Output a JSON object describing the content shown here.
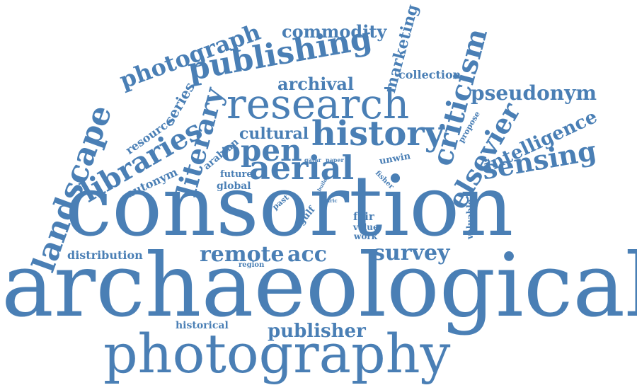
{
  "colors": {
    "word": "#4a7fb5",
    "background": "#ffffff"
  },
  "words": {
    "archaeological": "archaeological",
    "consortion": "consortion",
    "photography": "photography",
    "aerial": "aerial",
    "research": "research",
    "history": "history",
    "publishing": "publishing",
    "photograph": "photograph",
    "landscape": "landscape",
    "libraries": "libraries",
    "literary": "literary",
    "open": "open",
    "commodity": "commodity",
    "marketing": "marketing",
    "criticism": "criticism",
    "elsevier": "elsevier",
    "pseudonym": "pseudonym",
    "intelligence": "intelligence",
    "sensing": "sensing",
    "remote": "remote",
    "acc": "acc",
    "survey": "survey",
    "publisher": "publisher",
    "distribution": "distribution",
    "historical": "historical",
    "region": "region",
    "cultural": "cultural",
    "archival": "archival",
    "collection": "collection",
    "resource": "resource",
    "series": "series",
    "autonym": "autonym",
    "arabian": "arabian",
    "future": "future",
    "global": "global",
    "past": "past",
    "gulf": "gulf",
    "qatar": "qatar",
    "paper": "paper",
    "unwin": "unwin",
    "fisher": "fisher",
    "build": "build",
    "jaric": "jaric",
    "fair": "fair",
    "value": "value",
    "work": "work",
    "valuable": "valuable",
    "propose": "propose"
  }
}
